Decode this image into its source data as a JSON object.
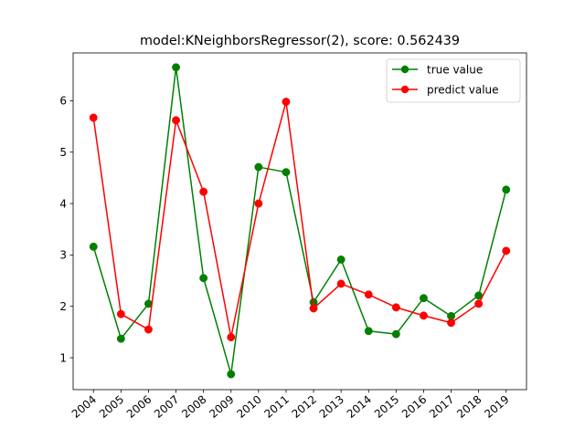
{
  "chart_data": {
    "type": "line",
    "title": "model:KNeighborsRegressor(2), score: 0.562439",
    "xlabel": "",
    "ylabel": "",
    "x": [
      "2004",
      "2005",
      "2006",
      "2007",
      "2008",
      "2009",
      "2010",
      "2011",
      "2012",
      "2013",
      "2014",
      "2015",
      "2016",
      "2017",
      "2018",
      "2019"
    ],
    "yticks": [
      1,
      2,
      3,
      4,
      5,
      6
    ],
    "ylim": [
      0.38,
      6.93
    ],
    "grid": false,
    "legend": "top-right",
    "series": [
      {
        "name": "true value",
        "color": "#008000",
        "values": [
          3.16,
          1.37,
          2.05,
          6.65,
          2.55,
          0.68,
          4.71,
          4.61,
          2.08,
          2.91,
          1.52,
          1.46,
          2.16,
          1.81,
          2.21,
          4.27
        ]
      },
      {
        "name": "predict value",
        "color": "#ff0000",
        "values": [
          5.67,
          1.85,
          1.55,
          5.62,
          4.23,
          1.4,
          4.0,
          5.98,
          1.96,
          2.44,
          2.23,
          1.98,
          1.82,
          1.68,
          2.05,
          3.08
        ]
      }
    ]
  }
}
